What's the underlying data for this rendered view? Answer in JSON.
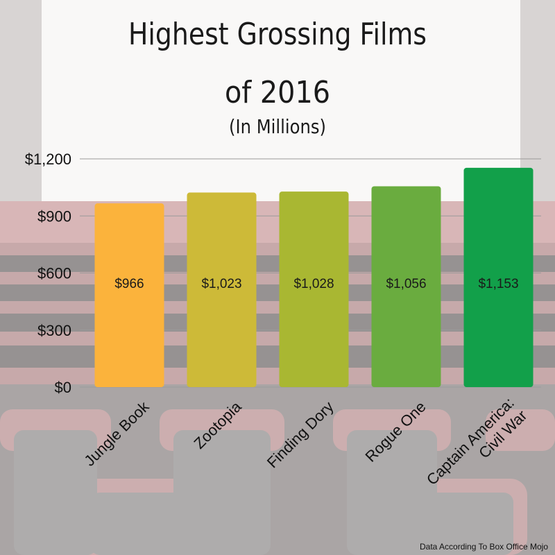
{
  "chart_data": {
    "type": "bar",
    "title_lines": [
      "Highest Grossing Films",
      "of 2016"
    ],
    "subtitle": "(In Millions)",
    "categories": [
      [
        "Jungle Book"
      ],
      [
        "Zootopia"
      ],
      [
        "Finding Dory"
      ],
      [
        "Rogue One"
      ],
      [
        "Captain America:",
        "Civil War"
      ]
    ],
    "values": [
      966,
      1023,
      1028,
      1056,
      1153
    ],
    "value_labels": [
      "$966",
      "$1,023",
      "$1,028",
      "$1,056",
      "$1,153"
    ],
    "bar_colors": [
      "#fbb33c",
      "#cdba38",
      "#a9b732",
      "#6aac3f",
      "#12a04a"
    ],
    "yticks": [
      0,
      300,
      600,
      900,
      1200
    ],
    "ytick_labels": [
      "$0",
      "$300",
      "$600",
      "$900",
      "$1,200"
    ],
    "ylim": [
      0,
      1200
    ],
    "grid": true,
    "source": "Data According To Box Office Mojo"
  }
}
